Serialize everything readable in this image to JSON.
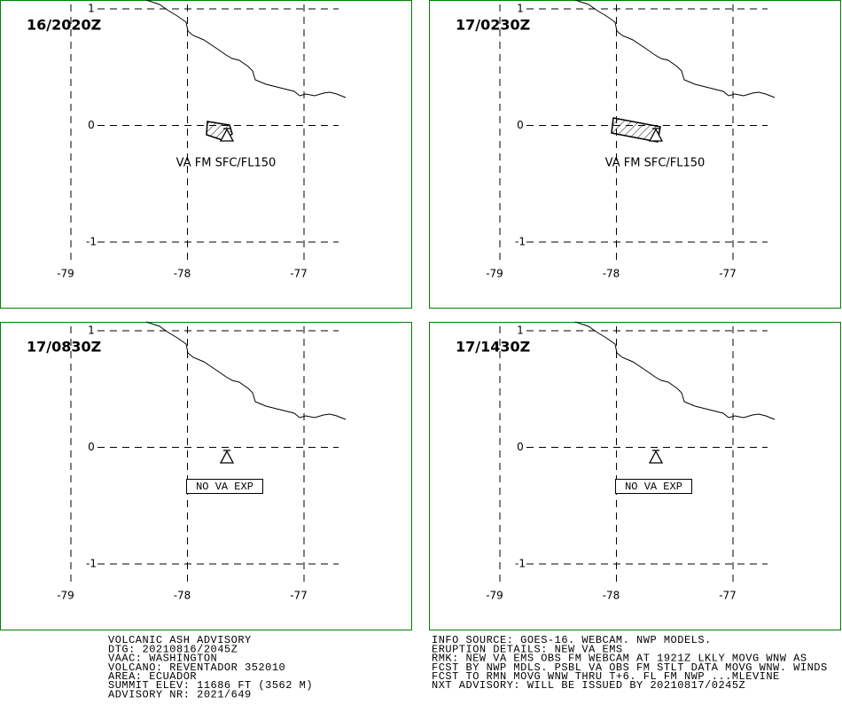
{
  "grid": {
    "lat": [
      1,
      0,
      -1
    ],
    "lon": [
      -79,
      -78,
      -77
    ]
  },
  "panels": [
    {
      "time": "16/2020Z",
      "label": "VA FM SFC/FL150"
    },
    {
      "time": "17/0230Z",
      "label": "VA FM SFC/FL150"
    },
    {
      "time": "17/0830Z",
      "label": "NO VA EXP"
    },
    {
      "time": "17/1430Z",
      "label": "NO VA EXP"
    }
  ],
  "advisory": {
    "left": [
      "VOLCANIC ASH ADVISORY",
      "DTG: 20210816/2045Z",
      "VAAC: WASHINGTON",
      "VOLCANO: REVENTADOR 352010",
      "AREA: ECUADOR",
      "SUMMIT ELEV: 11686 FT (3562 M)",
      "ADVISORY NR: 2021/649"
    ],
    "right": [
      "INFO SOURCE: GOES-16. WEBCAM. NWP MODELS.",
      "ERUPTION DETAILS: NEW VA EMS",
      "RMK: NEW VA EMS OBS FM WEBCAM AT 1921Z LKLY MOVG WNW AS",
      "FCST BY NWP MDLS. PSBL VA OBS FM STLT DATA MOVG WNW. WINDS",
      "FCST TO RMN MOVG WNW THRU T+6. FL FM NWP ...MLEVINE",
      "NXT ADVISORY: WILL BE ISSUED BY 20210817/0245Z"
    ]
  }
}
